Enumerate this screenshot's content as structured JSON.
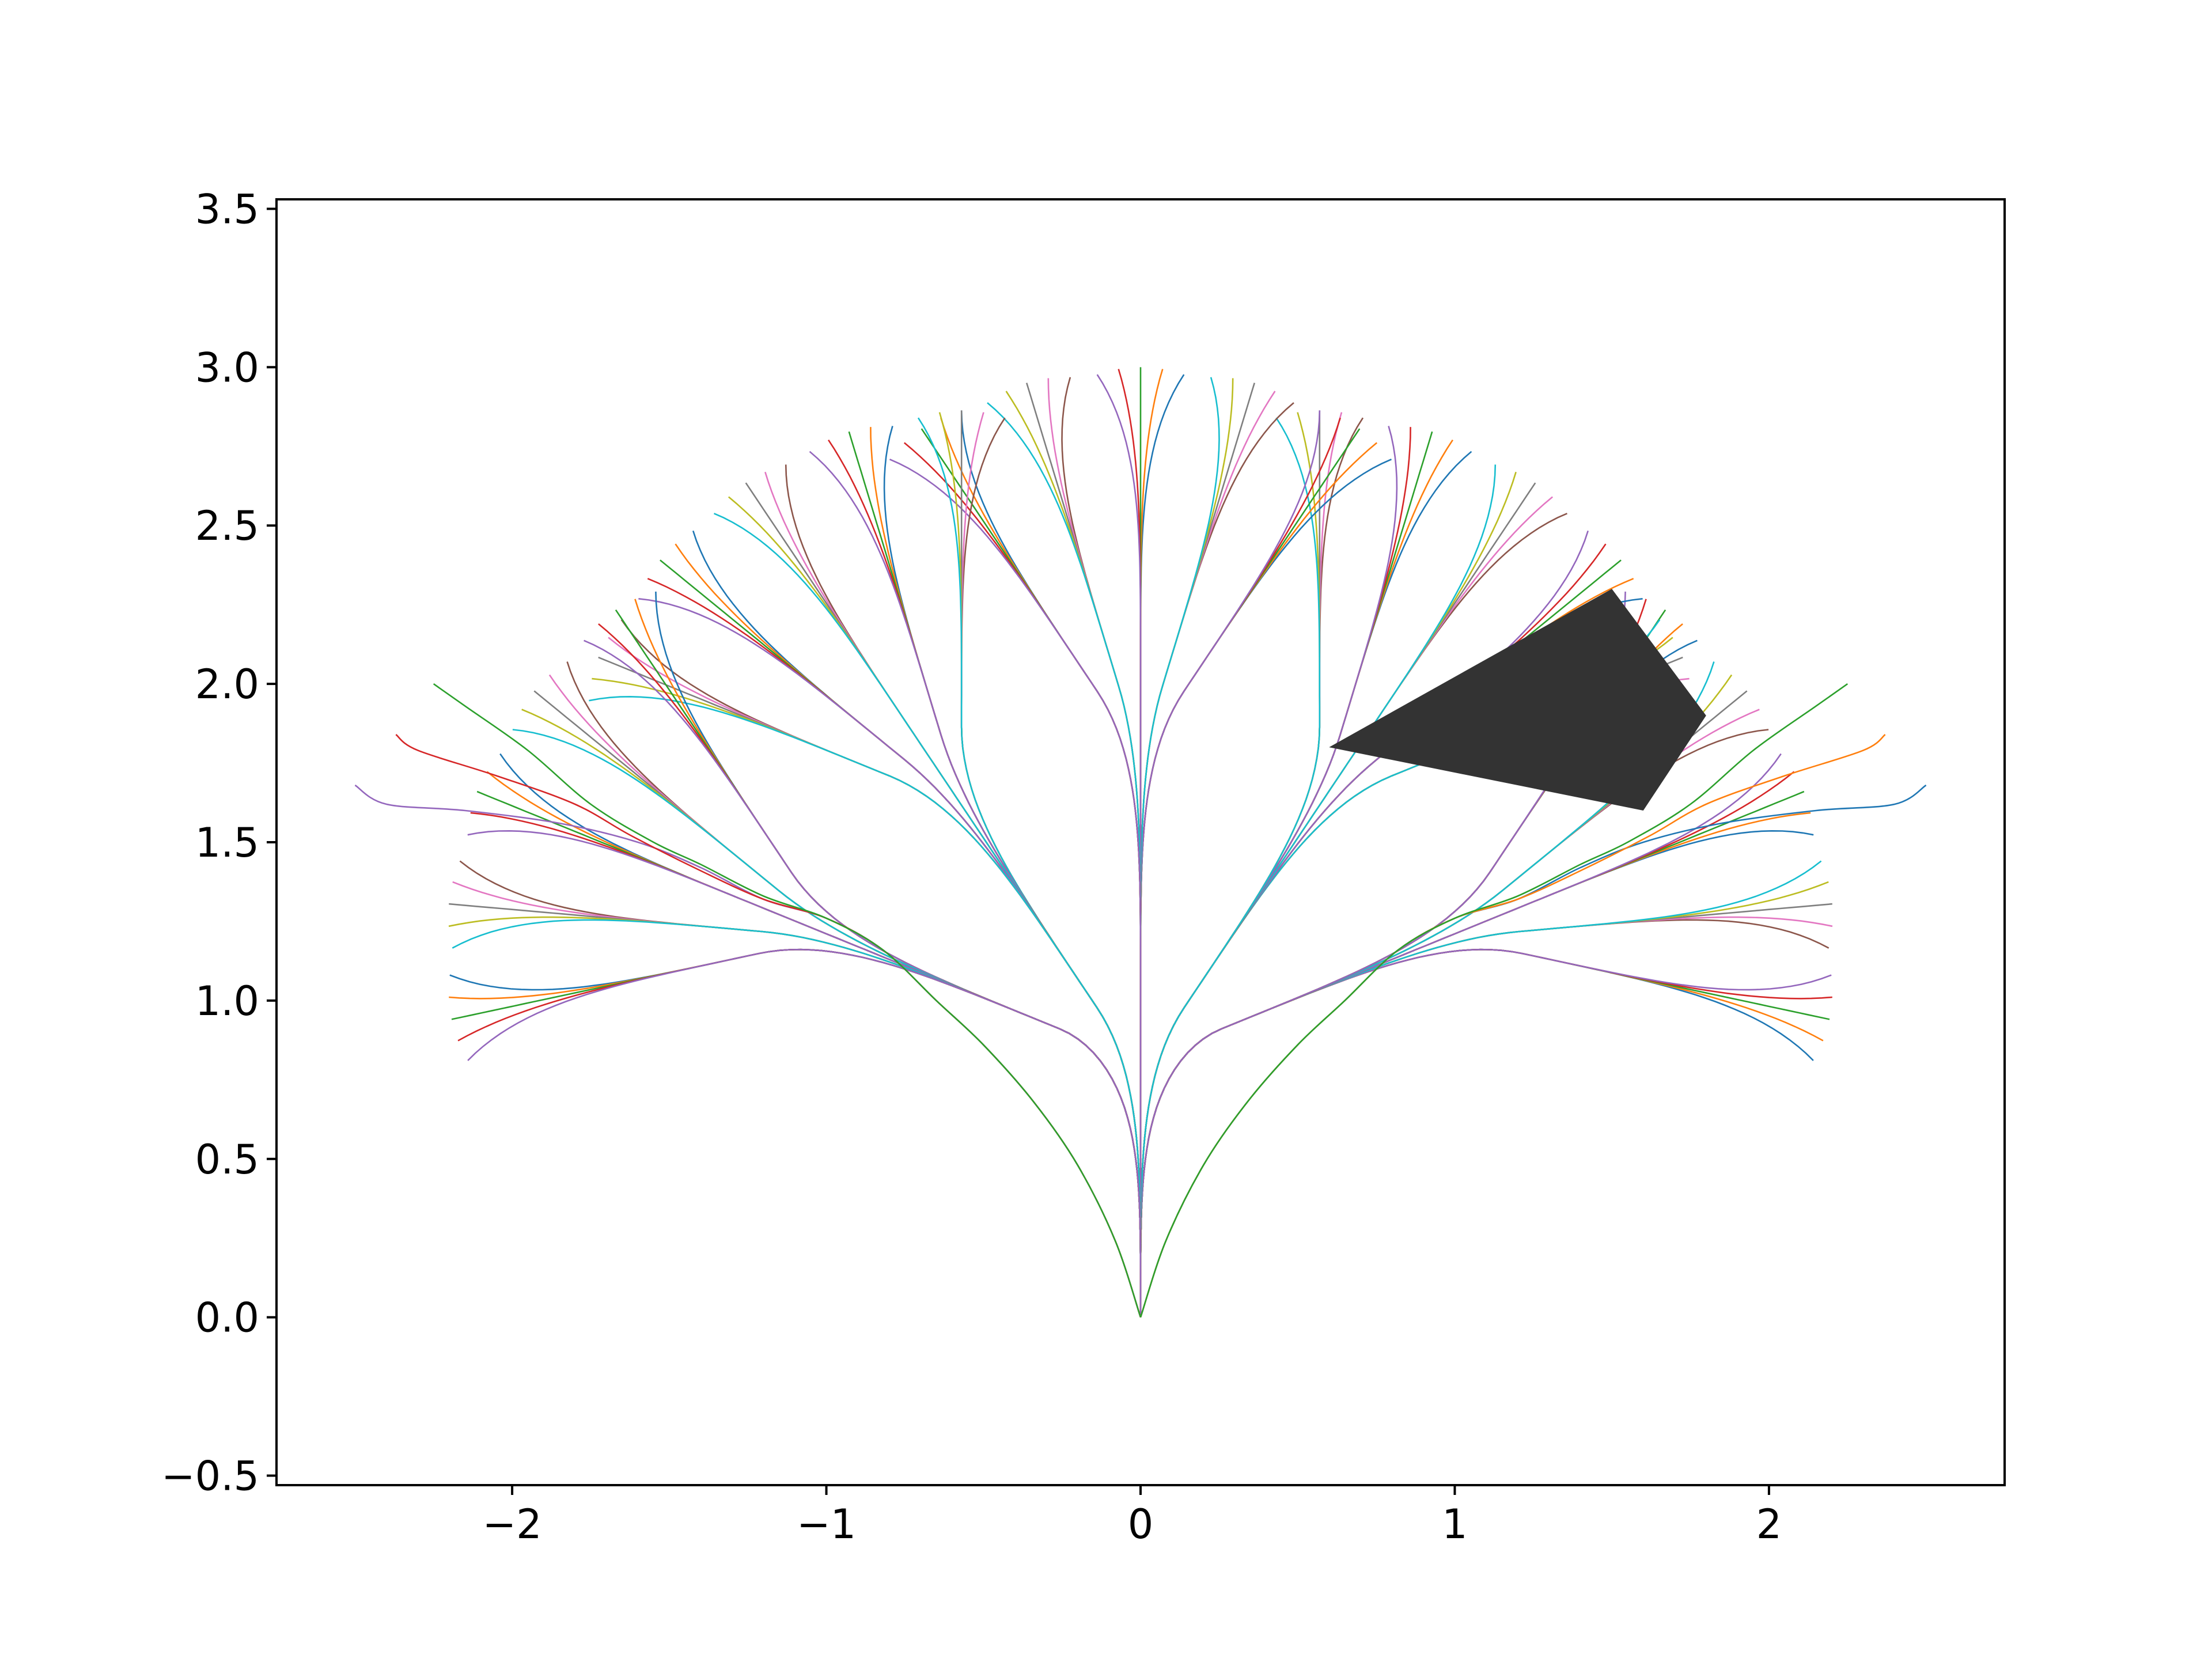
{
  "chart_data": {
    "type": "line",
    "title": "",
    "xlabel": "",
    "ylabel": "",
    "xlim": [
      -2.75,
      2.75
    ],
    "ylim": [
      -0.53,
      3.53
    ],
    "grid": false,
    "legend": "none",
    "x_ticks": [
      {
        "value": -2,
        "label": "−2"
      },
      {
        "value": -1,
        "label": "−1"
      },
      {
        "value": 0,
        "label": "0"
      },
      {
        "value": 1,
        "label": "1"
      },
      {
        "value": 2,
        "label": "2"
      }
    ],
    "y_ticks": [
      {
        "value": -0.5,
        "label": "−0.5"
      },
      {
        "value": 0.0,
        "label": "0.0"
      },
      {
        "value": 0.5,
        "label": "0.5"
      },
      {
        "value": 1.0,
        "label": "1.0"
      },
      {
        "value": 1.5,
        "label": "1.5"
      },
      {
        "value": 2.0,
        "label": "2.0"
      },
      {
        "value": 2.5,
        "label": "2.5"
      },
      {
        "value": 3.0,
        "label": "3.0"
      },
      {
        "value": 3.5,
        "label": "3.5"
      }
    ],
    "lattice": {
      "origin": [
        0,
        0
      ],
      "radius": 3.0,
      "levels": 3,
      "headings_per_branch": 5,
      "level_heading_spread_deg": [
        34,
        17,
        17
      ],
      "turn_sharpness": 3.2,
      "palette": [
        "#1f77b4",
        "#ff7f0e",
        "#2ca02c",
        "#d62728",
        "#9467bd",
        "#8c564b",
        "#e377c2",
        "#7f7f7f",
        "#bcbd22",
        "#17becf"
      ]
    },
    "outer_branches": [
      {
        "color": "#9467bd",
        "points": [
          [
            -2.5,
            1.68
          ],
          [
            -2.4,
            1.62
          ],
          [
            -2.15,
            1.6
          ],
          [
            -1.85,
            1.56
          ],
          [
            -1.6,
            1.5
          ],
          [
            -1.4,
            1.42
          ],
          [
            -1.2,
            1.32
          ],
          [
            -1.0,
            1.26
          ],
          [
            -0.82,
            1.16
          ],
          [
            -0.65,
            1.0
          ],
          [
            -0.5,
            0.86
          ],
          [
            -0.34,
            0.68
          ],
          [
            -0.2,
            0.48
          ],
          [
            -0.08,
            0.24
          ],
          [
            0.0,
            0.0
          ]
        ]
      },
      {
        "color": "#d62728",
        "points": [
          [
            -2.37,
            1.84
          ],
          [
            -2.3,
            1.79
          ],
          [
            -2.05,
            1.71
          ],
          [
            -1.8,
            1.62
          ],
          [
            -1.62,
            1.52
          ],
          [
            -1.4,
            1.41
          ],
          [
            -1.2,
            1.32
          ],
          [
            -1.0,
            1.26
          ],
          [
            -0.82,
            1.16
          ],
          [
            -0.65,
            1.0
          ],
          [
            -0.5,
            0.86
          ],
          [
            -0.34,
            0.68
          ],
          [
            -0.2,
            0.48
          ],
          [
            -0.08,
            0.24
          ],
          [
            0.0,
            0.0
          ]
        ]
      },
      {
        "color": "#2ca02c",
        "points": [
          [
            -2.25,
            2.0
          ],
          [
            -2.15,
            1.93
          ],
          [
            -1.95,
            1.79
          ],
          [
            -1.75,
            1.62
          ],
          [
            -1.55,
            1.5
          ],
          [
            -1.4,
            1.43
          ],
          [
            -1.2,
            1.33
          ],
          [
            -1.0,
            1.26
          ],
          [
            -0.82,
            1.16
          ],
          [
            -0.65,
            1.0
          ],
          [
            -0.5,
            0.86
          ],
          [
            -0.34,
            0.68
          ],
          [
            -0.2,
            0.48
          ],
          [
            -0.08,
            0.24
          ],
          [
            0.0,
            0.0
          ]
        ]
      },
      {
        "color": "#1f77b4",
        "points": [
          [
            2.5,
            1.68
          ],
          [
            2.4,
            1.62
          ],
          [
            2.15,
            1.6
          ],
          [
            1.85,
            1.56
          ],
          [
            1.6,
            1.5
          ],
          [
            1.4,
            1.42
          ],
          [
            1.2,
            1.32
          ],
          [
            1.0,
            1.26
          ],
          [
            0.82,
            1.16
          ],
          [
            0.65,
            1.0
          ],
          [
            0.5,
            0.86
          ],
          [
            0.34,
            0.68
          ],
          [
            0.2,
            0.48
          ],
          [
            0.08,
            0.24
          ],
          [
            0.0,
            0.0
          ]
        ]
      },
      {
        "color": "#ff7f0e",
        "points": [
          [
            2.37,
            1.84
          ],
          [
            2.3,
            1.79
          ],
          [
            2.05,
            1.71
          ],
          [
            1.8,
            1.62
          ],
          [
            1.62,
            1.52
          ],
          [
            1.4,
            1.41
          ],
          [
            1.2,
            1.32
          ],
          [
            1.0,
            1.26
          ],
          [
            0.82,
            1.16
          ],
          [
            0.65,
            1.0
          ],
          [
            0.5,
            0.86
          ],
          [
            0.34,
            0.68
          ],
          [
            0.2,
            0.48
          ],
          [
            0.08,
            0.24
          ],
          [
            0.0,
            0.0
          ]
        ]
      },
      {
        "color": "#2ca02c",
        "points": [
          [
            2.25,
            2.0
          ],
          [
            2.15,
            1.93
          ],
          [
            1.95,
            1.79
          ],
          [
            1.75,
            1.62
          ],
          [
            1.55,
            1.5
          ],
          [
            1.4,
            1.43
          ],
          [
            1.2,
            1.33
          ],
          [
            1.0,
            1.26
          ],
          [
            0.82,
            1.16
          ],
          [
            0.65,
            1.0
          ],
          [
            0.5,
            0.86
          ],
          [
            0.34,
            0.68
          ],
          [
            0.2,
            0.48
          ],
          [
            0.08,
            0.24
          ],
          [
            0.0,
            0.0
          ]
        ]
      }
    ],
    "obstacle": {
      "color": "#333333",
      "points": [
        [
          0.6,
          1.8
        ],
        [
          1.5,
          2.3
        ],
        [
          1.8,
          1.9
        ],
        [
          1.6,
          1.6
        ]
      ]
    }
  }
}
